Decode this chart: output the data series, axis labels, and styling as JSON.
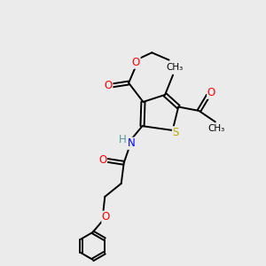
{
  "bg_color": "#ebebeb",
  "atom_colors": {
    "O": "#ff0000",
    "N": "#0000ff",
    "S": "#bbaa00",
    "C": "#000000",
    "H": "#559999"
  },
  "bond_color": "#000000",
  "lw": 1.4,
  "fs": 8.5
}
